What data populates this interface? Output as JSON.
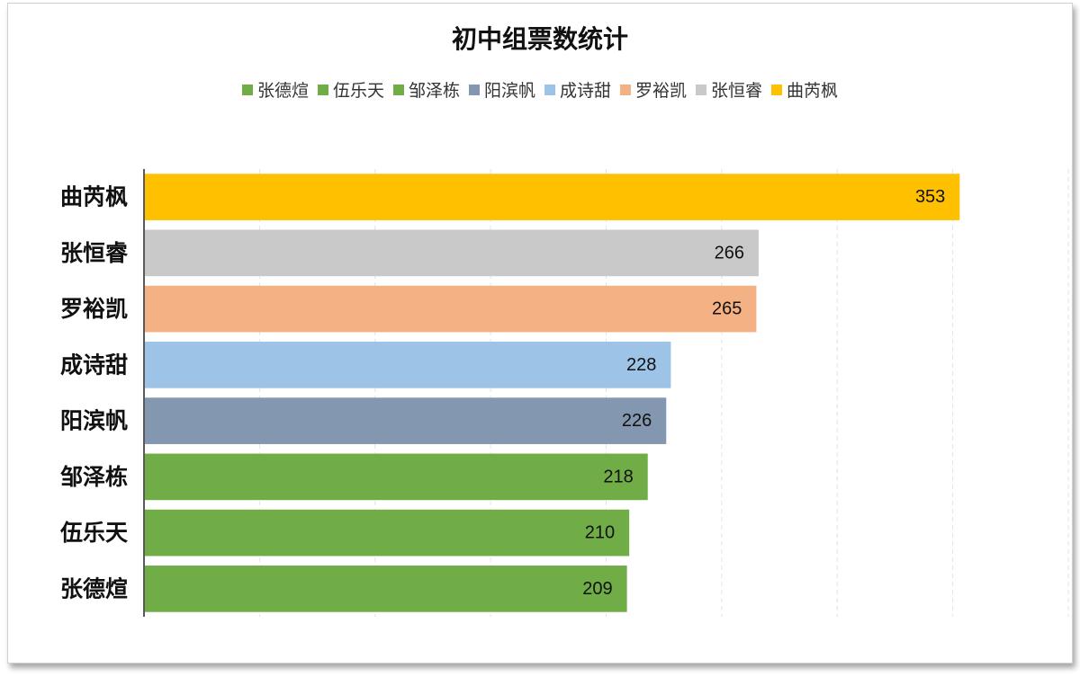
{
  "chart_data": {
    "type": "bar",
    "orientation": "horizontal",
    "title": "初中组票数统计",
    "categories": [
      "曲芮枫",
      "张恒睿",
      "罗裕凯",
      "成诗甜",
      "阳滨帆",
      "邹泽栋",
      "伍乐天",
      "张德煊"
    ],
    "values": [
      353,
      266,
      265,
      228,
      226,
      218,
      210,
      209
    ],
    "colors": [
      "#FFC000",
      "#C9C9C9",
      "#F4B183",
      "#9DC3E6",
      "#8497B0",
      "#70AD47",
      "#70AD47",
      "#70AD47"
    ],
    "legend": {
      "position": "top",
      "entries": [
        {
          "label": "张德煊",
          "color": "#70AD47"
        },
        {
          "label": "伍乐天",
          "color": "#70AD47"
        },
        {
          "label": "邹泽栋",
          "color": "#70AD47"
        },
        {
          "label": "阳滨帆",
          "color": "#8497B0"
        },
        {
          "label": "成诗甜",
          "color": "#9DC3E6"
        },
        {
          "label": "罗裕凯",
          "color": "#F4B183"
        },
        {
          "label": "张恒睿",
          "color": "#C9C9C9"
        },
        {
          "label": "曲芮枫",
          "color": "#FFC000"
        }
      ]
    },
    "xlim": [
      0,
      400
    ],
    "grid": true,
    "grid_style": "dashed vertical",
    "data_labels": true
  }
}
